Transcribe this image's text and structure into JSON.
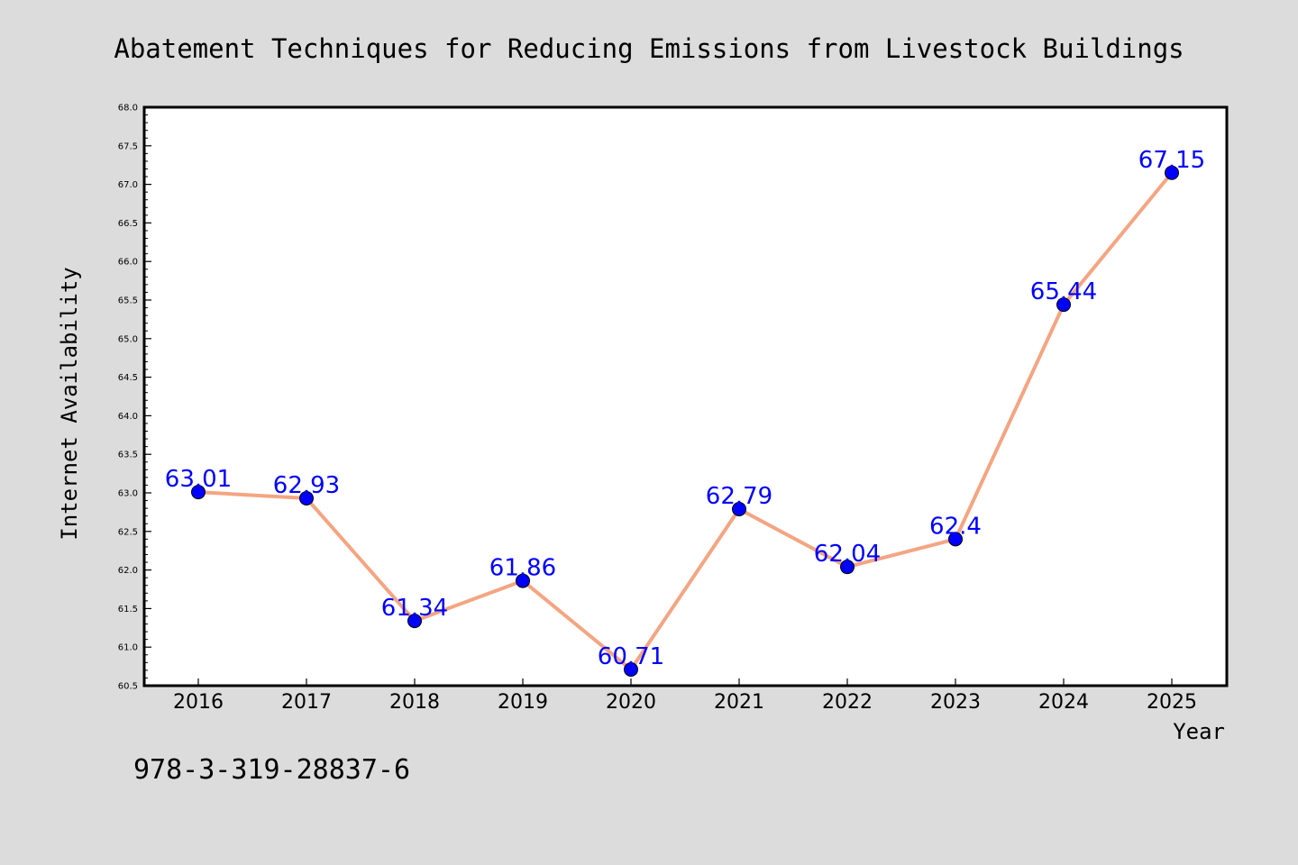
{
  "chart_data": {
    "type": "line",
    "title": "Abatement Techniques for Reducing Emissions from Livestock Buildings",
    "xlabel": "Year",
    "ylabel": "Internet Availability",
    "annotation": "978-3-319-28837-6",
    "x": [
      "2016",
      "2017",
      "2018",
      "2019",
      "2020",
      "2021",
      "2022",
      "2023",
      "2024",
      "2025"
    ],
    "series": [
      {
        "values": [
          63.01,
          62.93,
          61.34,
          61.86,
          60.71,
          62.79,
          62.04,
          62.4,
          65.44,
          67.15
        ],
        "labels": [
          "63.01",
          "62.93",
          "61.34",
          "61.86",
          "60.71",
          "62.79",
          "62.04",
          "62.4",
          "65.44",
          "67.15"
        ],
        "line_color": "#f4a582",
        "marker_color": "#0000ff",
        "label_color": "#0000ff"
      }
    ],
    "ylim": [
      60.5,
      68.0
    ],
    "yticks": [
      "60.5",
      "61.0",
      "61.5",
      "62.0",
      "62.5",
      "63.0",
      "63.5",
      "64.0",
      "64.5",
      "65.0",
      "65.5",
      "66.0",
      "66.5",
      "67.0",
      "67.5",
      "68.0"
    ],
    "grid": false,
    "legend": "none",
    "background": "#dcdcdc",
    "plot_background": "#ffffff"
  }
}
